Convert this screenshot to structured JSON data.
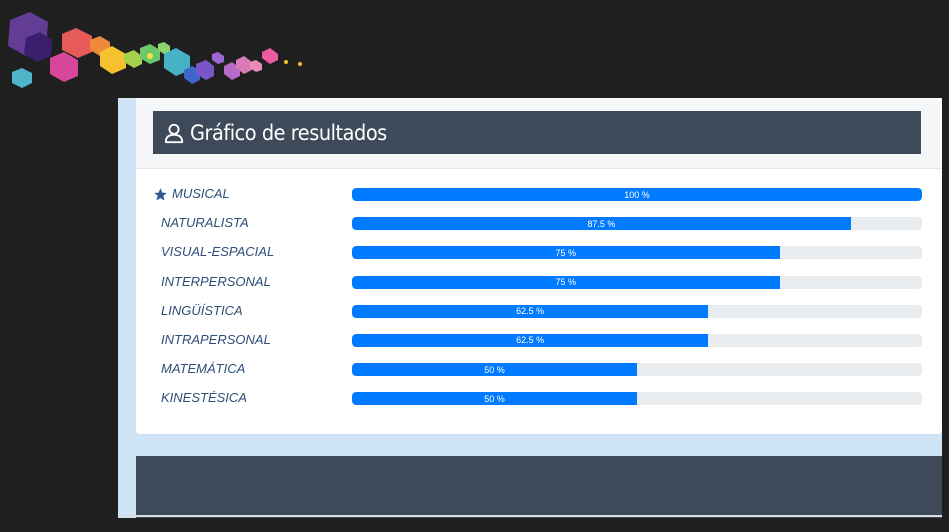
{
  "header": {
    "title": "Gráfico de resultados",
    "title_icon": "user-icon"
  },
  "colors": {
    "page_background": "#1f1f1f",
    "panel_background": "#cfe3f7",
    "title_bar": "#3e4a59",
    "bar_fill": "#007bff",
    "bar_track": "#e9ecef",
    "label_text": "#2d4e78"
  },
  "results": [
    {
      "label": "MUSICAL",
      "value": 100,
      "value_label": "100 %",
      "icon": "star-icon"
    },
    {
      "label": "NATURALISTA",
      "value": 87.5,
      "value_label": "87.5 %"
    },
    {
      "label": "VISUAL-ESPACIAL",
      "value": 75,
      "value_label": "75 %"
    },
    {
      "label": "INTERPERSONAL",
      "value": 75,
      "value_label": "75 %"
    },
    {
      "label": "LINGÜÍSTICA",
      "value": 62.5,
      "value_label": "62.5 %"
    },
    {
      "label": "INTRAPERSONAL",
      "value": 62.5,
      "value_label": "62.5 %"
    },
    {
      "label": "MATEMÁTICA",
      "value": 50,
      "value_label": "50 %"
    },
    {
      "label": "KINESTÉSICA",
      "value": 50,
      "value_label": "50 %"
    }
  ]
}
